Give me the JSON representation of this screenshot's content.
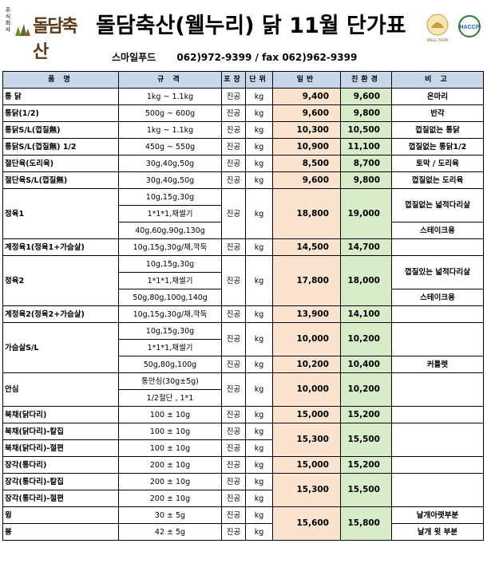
{
  "logo": {
    "small_text": "주식회사",
    "name": "돌담축산"
  },
  "title": "돌담축산(웰누리) 닭 11월 단가표",
  "badges": {
    "wellnuri": "WELL NURI",
    "haccp": "HACCP"
  },
  "contact": {
    "company": "스마일푸드",
    "phone": "062)972-9399 / fax 062)962-9399"
  },
  "headers": [
    "품 명",
    "규 격",
    "포장",
    "단위",
    "일반",
    "친환경",
    "비 고"
  ],
  "rows": {
    "r1": {
      "name": "통 닭",
      "spec": "1kg ~ 1.1kg",
      "pack": "진공",
      "unit": "kg",
      "general": "9,400",
      "eco": "9,600",
      "note": "온마리"
    },
    "r2": {
      "name": "통닭(1/2)",
      "spec": "500g ~ 600g",
      "pack": "진공",
      "unit": "kg",
      "general": "9,600",
      "eco": "9,800",
      "note": "반각"
    },
    "r3": {
      "name": "통닭S/L(껍질無)",
      "spec": "1kg ~ 1.1kg",
      "pack": "진공",
      "unit": "kg",
      "general": "10,300",
      "eco": "10,500",
      "note": "껍질없는 통닭"
    },
    "r4": {
      "name": "통닭S/L(껍질無) 1/2",
      "spec": "450g ~ 550g",
      "pack": "진공",
      "unit": "kg",
      "general": "10,900",
      "eco": "11,100",
      "note": "껍질없는 통닭1/2"
    },
    "r5": {
      "name": "절단육(도리육)",
      "spec": "30g,40g,50g",
      "pack": "진공",
      "unit": "kg",
      "general": "8,500",
      "eco": "8,700",
      "note": "토막 / 도리육"
    },
    "r6": {
      "name": "절단육S/L(껍질無)",
      "spec": "30g,40g,50g",
      "pack": "진공",
      "unit": "kg",
      "general": "9,600",
      "eco": "9,800",
      "note": "껍질없는 도리육"
    },
    "r7": {
      "name": "정육1",
      "spec_a": "10g,15g,30g",
      "spec_b": "1*1*1,채썰기",
      "spec_c": "40g,60g,90g,130g",
      "pack": "진공",
      "unit": "kg",
      "general": "18,800",
      "eco": "19,000",
      "note_a": "껍질없는 넓적다리살",
      "note_b": "스테이크용"
    },
    "r8": {
      "name": "계정육1(정육1+가슴살)",
      "spec": "10g,15g,30g/채,깍둑",
      "pack": "진공",
      "unit": "kg",
      "general": "14,500",
      "eco": "14,700",
      "note": ""
    },
    "r9": {
      "name": "정육2",
      "spec_a": "10g,15g,30g",
      "spec_b": "1*1*1,채썰기",
      "spec_c": "50g,80g,100g,140g",
      "pack": "진공",
      "unit": "kg",
      "general": "17,800",
      "eco": "18,000",
      "note_a": "껍질있는 넓적다리살",
      "note_b": "스테이크용"
    },
    "r10": {
      "name": "계정육2(정육2+가슴살)",
      "spec": "10g,15g,30g/채,깍둑",
      "pack": "진공",
      "unit": "kg",
      "general": "13,900",
      "eco": "14,100",
      "note": ""
    },
    "r11": {
      "name": "가슴살S/L",
      "spec_a": "10g,15g,30g",
      "spec_b": "1*1*1,채썰기",
      "pack": "진공",
      "unit": "kg",
      "general": "10,000",
      "eco": "10,200",
      "spec_c": "50g,80g,100g",
      "pack_c": "진공",
      "unit_c": "kg",
      "general_c": "10,200",
      "eco_c": "10,400",
      "note_c": "커틀렛"
    },
    "r12": {
      "name": "안심",
      "spec_a": "통안심(30g±5g)",
      "spec_b": "1/2절단 , 1*1",
      "pack": "진공",
      "unit": "kg",
      "general": "10,000",
      "eco": "10,200",
      "note": ""
    },
    "r13": {
      "name": "북채(닭다리)",
      "spec": "100 ± 10g",
      "pack": "진공",
      "unit": "kg",
      "general": "15,000",
      "eco": "15,200",
      "note": ""
    },
    "r14": {
      "name_a": "북채(닭다리)-칼집",
      "name_b": "북채(닭다리)-절편",
      "spec_a": "100 ± 10g",
      "spec_b": "100 ± 10g",
      "pack_a": "진공",
      "pack_b": "진공",
      "unit_a": "kg",
      "unit_b": "kg",
      "general": "15,300",
      "eco": "15,500"
    },
    "r15": {
      "name": "장각(통다리)",
      "spec": "200 ± 10g",
      "pack": "진공",
      "unit": "kg",
      "general": "15,000",
      "eco": "15,200",
      "note": ""
    },
    "r16": {
      "name_a": "장각(통다리)-칼집",
      "name_b": "장각(통다리)-절편",
      "spec_a": "200 ± 10g",
      "spec_b": "200 ± 10g",
      "pack_a": "진공",
      "pack_b": "진공",
      "unit_a": "kg",
      "unit_b": "kg",
      "general": "15,300",
      "eco": "15,500"
    },
    "r17": {
      "name_a": "윙",
      "name_b": "봉",
      "spec_a": "30 ± 5g",
      "spec_b": "42 ± 5g",
      "pack_a": "진공",
      "pack_b": "진공",
      "unit_a": "kg",
      "unit_b": "kg",
      "general": "15,600",
      "eco": "15,800",
      "note_a": "날개아랫부분",
      "note_b": "날개 윗 부분"
    }
  },
  "colors": {
    "header_bg": "#c9d7ea",
    "general_bg": "#fbe4cf",
    "eco_bg": "#d9ecc9"
  }
}
